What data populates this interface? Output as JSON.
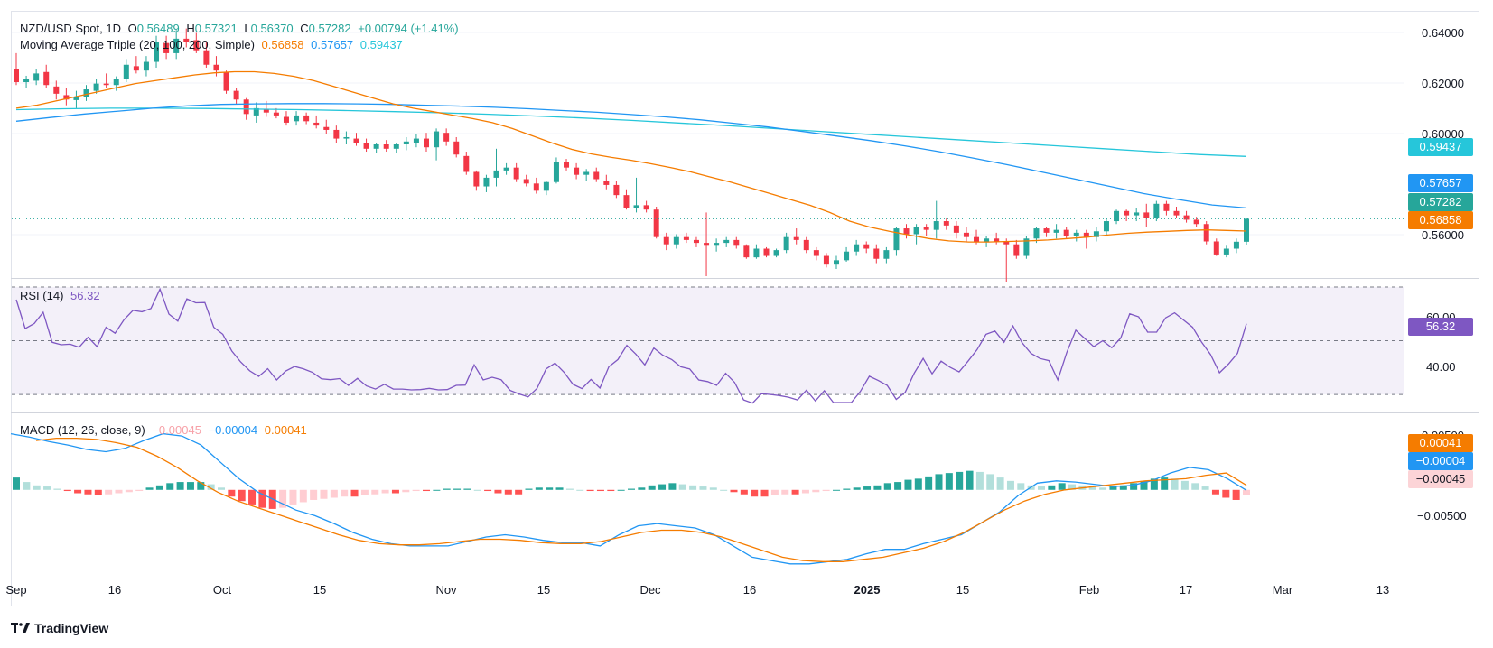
{
  "colors": {
    "up": "#26a69a",
    "down": "#f23645",
    "ma20": "#f57c00",
    "ma100": "#2196f3",
    "ma200": "#26c6da",
    "rsi": "#7e57c2",
    "macd": "#2196f3",
    "signal": "#f57c00"
  },
  "legend": {
    "symbol": "NZD/USD Spot, 1D",
    "o_label": "O",
    "o": "0.56489",
    "h_label": "H",
    "h": "0.57321",
    "l_label": "L",
    "l": "0.56370",
    "c_label": "C",
    "c": "0.57282",
    "change": "+0.00794 (+1.41%)",
    "ma_title": "Moving Average Triple (20, 100, 200, Simple)",
    "ma20": "0.56858",
    "ma100": "0.57657",
    "ma200": "0.59437"
  },
  "rsi_legend": {
    "title": "RSI (14)",
    "value": "56.32"
  },
  "macd_legend": {
    "title": "MACD (12, 26, close, 9)",
    "hist": "−0.00045",
    "macd": "−0.00004",
    "signal": "0.00041"
  },
  "price_axis": [
    "0.64000",
    "0.62000",
    "0.60000",
    "0.56000"
  ],
  "rsi_axis": [
    "60.00",
    "40.00"
  ],
  "macd_axis": [
    "0.00500",
    "−0.00500"
  ],
  "badges": {
    "ma200": "0.59437",
    "ma100": "0.57657",
    "close": "0.57282",
    "ma20": "0.56858",
    "rsi": "56.32",
    "signal": "0.00041",
    "macd": "−0.00004",
    "hist": "−0.00045"
  },
  "time_axis": [
    "Sep",
    "16",
    "Oct",
    "15",
    "Nov",
    "15",
    "Dec",
    "16",
    "2025",
    "15",
    "Feb",
    "17",
    "Mar",
    "13"
  ],
  "brand": "TradingView",
  "chart_data": {
    "type": "candlestick",
    "title": "NZD/USD Spot, 1D",
    "price_range": [
      0.553,
      0.644
    ],
    "rsi_range": [
      25,
      72
    ],
    "macd_range": [
      -0.0075,
      0.0065
    ],
    "candles": [
      [
        0.6245,
        0.63,
        0.619,
        0.62
      ],
      [
        0.62,
        0.6222,
        0.618,
        0.621
      ],
      [
        0.6205,
        0.6245,
        0.619,
        0.623
      ],
      [
        0.6235,
        0.626,
        0.618,
        0.619
      ],
      [
        0.6185,
        0.6205,
        0.614,
        0.616
      ],
      [
        0.6155,
        0.618,
        0.612,
        0.614
      ],
      [
        0.6138,
        0.617,
        0.611,
        0.615
      ],
      [
        0.615,
        0.619,
        0.6135,
        0.6175
      ],
      [
        0.617,
        0.621,
        0.616,
        0.6195
      ],
      [
        0.6195,
        0.623,
        0.618,
        0.619
      ],
      [
        0.619,
        0.622,
        0.617,
        0.621
      ],
      [
        0.621,
        0.628,
        0.62,
        0.626
      ],
      [
        0.6255,
        0.629,
        0.623,
        0.624
      ],
      [
        0.624,
        0.629,
        0.622,
        0.627
      ],
      [
        0.627,
        0.636,
        0.625,
        0.634
      ],
      [
        0.6335,
        0.636,
        0.628,
        0.63
      ],
      [
        0.63,
        0.638,
        0.628,
        0.635
      ],
      [
        0.635,
        0.6385,
        0.632,
        0.634
      ],
      [
        0.6345,
        0.637,
        0.63,
        0.631
      ],
      [
        0.631,
        0.634,
        0.625,
        0.626
      ],
      [
        0.626,
        0.629,
        0.622,
        0.624
      ],
      [
        0.6235,
        0.624,
        0.616,
        0.617
      ],
      [
        0.617,
        0.618,
        0.6125,
        0.614
      ],
      [
        0.614,
        0.6145,
        0.607,
        0.609
      ],
      [
        0.6085,
        0.613,
        0.606,
        0.611
      ],
      [
        0.6105,
        0.6135,
        0.608,
        0.6095
      ],
      [
        0.6095,
        0.611,
        0.6075,
        0.6085
      ],
      [
        0.608,
        0.61,
        0.605,
        0.606
      ],
      [
        0.6065,
        0.61,
        0.605,
        0.6085
      ],
      [
        0.6085,
        0.6095,
        0.6055,
        0.6065
      ],
      [
        0.606,
        0.6085,
        0.604,
        0.605
      ],
      [
        0.6045,
        0.607,
        0.602,
        0.6035
      ],
      [
        0.6035,
        0.605,
        0.599,
        0.6005
      ],
      [
        0.6005,
        0.603,
        0.5985,
        0.601
      ],
      [
        0.6005,
        0.6025,
        0.598,
        0.599
      ],
      [
        0.599,
        0.6005,
        0.596,
        0.597
      ],
      [
        0.597,
        0.599,
        0.5955,
        0.5985
      ],
      [
        0.5985,
        0.6,
        0.596,
        0.597
      ],
      [
        0.597,
        0.599,
        0.5955,
        0.5985
      ],
      [
        0.5985,
        0.601,
        0.5965,
        0.5995
      ],
      [
        0.599,
        0.602,
        0.5975,
        0.6005
      ],
      [
        0.6005,
        0.6025,
        0.596,
        0.5975
      ],
      [
        0.5975,
        0.604,
        0.593,
        0.603
      ],
      [
        0.6025,
        0.604,
        0.598,
        0.5995
      ],
      [
        0.5995,
        0.601,
        0.594,
        0.595
      ],
      [
        0.5945,
        0.596,
        0.588,
        0.589
      ],
      [
        0.589,
        0.5895,
        0.5825,
        0.584
      ],
      [
        0.584,
        0.588,
        0.582,
        0.587
      ],
      [
        0.587,
        0.597,
        0.584,
        0.5895
      ],
      [
        0.5895,
        0.592,
        0.588,
        0.5905
      ],
      [
        0.5905,
        0.592,
        0.5855,
        0.5865
      ],
      [
        0.5865,
        0.588,
        0.584,
        0.585
      ],
      [
        0.585,
        0.587,
        0.5815,
        0.5825
      ],
      [
        0.5825,
        0.586,
        0.581,
        0.5855
      ],
      [
        0.5855,
        0.594,
        0.585,
        0.5925
      ],
      [
        0.5925,
        0.5935,
        0.5895,
        0.5905
      ],
      [
        0.5905,
        0.592,
        0.5865,
        0.588
      ],
      [
        0.588,
        0.59,
        0.586,
        0.589
      ],
      [
        0.589,
        0.5905,
        0.5855,
        0.5865
      ],
      [
        0.586,
        0.588,
        0.583,
        0.5845
      ],
      [
        0.5845,
        0.586,
        0.58,
        0.581
      ],
      [
        0.581,
        0.583,
        0.576,
        0.5765
      ],
      [
        0.5765,
        0.587,
        0.575,
        0.5775
      ],
      [
        0.5775,
        0.579,
        0.575,
        0.576
      ],
      [
        0.576,
        0.577,
        0.566,
        0.5665
      ],
      [
        0.5665,
        0.568,
        0.562,
        0.564
      ],
      [
        0.564,
        0.5675,
        0.5625,
        0.5665
      ],
      [
        0.5665,
        0.568,
        0.5645,
        0.5655
      ],
      [
        0.5655,
        0.5665,
        0.563,
        0.5645
      ],
      [
        0.5645,
        0.575,
        0.553,
        0.5635
      ],
      [
        0.5635,
        0.566,
        0.5615,
        0.5645
      ],
      [
        0.5645,
        0.5665,
        0.563,
        0.5655
      ],
      [
        0.5655,
        0.5665,
        0.5625,
        0.5635
      ],
      [
        0.5635,
        0.564,
        0.559,
        0.5595
      ],
      [
        0.5595,
        0.564,
        0.559,
        0.5625
      ],
      [
        0.5625,
        0.563,
        0.5595,
        0.56
      ],
      [
        0.56,
        0.5625,
        0.5595,
        0.562
      ],
      [
        0.562,
        0.568,
        0.561,
        0.5665
      ],
      [
        0.5665,
        0.5695,
        0.564,
        0.5655
      ],
      [
        0.5655,
        0.5665,
        0.561,
        0.562
      ],
      [
        0.562,
        0.563,
        0.5585,
        0.56
      ],
      [
        0.56,
        0.561,
        0.556,
        0.557
      ],
      [
        0.557,
        0.56,
        0.5555,
        0.5585
      ],
      [
        0.5585,
        0.563,
        0.558,
        0.5615
      ],
      [
        0.5615,
        0.5655,
        0.56,
        0.564
      ],
      [
        0.564,
        0.565,
        0.561,
        0.5625
      ],
      [
        0.5625,
        0.564,
        0.5575,
        0.559
      ],
      [
        0.559,
        0.563,
        0.5575,
        0.562
      ],
      [
        0.562,
        0.57,
        0.56,
        0.5695
      ],
      [
        0.5695,
        0.571,
        0.566,
        0.5675
      ],
      [
        0.5675,
        0.571,
        0.564,
        0.57
      ],
      [
        0.57,
        0.571,
        0.567,
        0.569
      ],
      [
        0.569,
        0.579,
        0.566,
        0.572
      ],
      [
        0.572,
        0.573,
        0.569,
        0.5705
      ],
      [
        0.5705,
        0.572,
        0.566,
        0.568
      ],
      [
        0.568,
        0.57,
        0.565,
        0.5665
      ],
      [
        0.5665,
        0.569,
        0.564,
        0.565
      ],
      [
        0.565,
        0.567,
        0.563,
        0.566
      ],
      [
        0.566,
        0.568,
        0.564,
        0.565
      ],
      [
        0.565,
        0.566,
        0.551,
        0.564
      ],
      [
        0.564,
        0.5655,
        0.559,
        0.56
      ],
      [
        0.56,
        0.567,
        0.559,
        0.566
      ],
      [
        0.566,
        0.57,
        0.5645,
        0.5695
      ],
      [
        0.5695,
        0.57,
        0.5665,
        0.568
      ],
      [
        0.568,
        0.571,
        0.566,
        0.569
      ],
      [
        0.569,
        0.57,
        0.566,
        0.567
      ],
      [
        0.567,
        0.569,
        0.565,
        0.568
      ],
      [
        0.568,
        0.569,
        0.5625,
        0.5665
      ],
      [
        0.5665,
        0.57,
        0.565,
        0.5685
      ],
      [
        0.5685,
        0.573,
        0.567,
        0.572
      ],
      [
        0.572,
        0.576,
        0.571,
        0.5755
      ],
      [
        0.5755,
        0.576,
        0.572,
        0.574
      ],
      [
        0.574,
        0.5765,
        0.572,
        0.575
      ],
      [
        0.575,
        0.578,
        0.57,
        0.573
      ],
      [
        0.573,
        0.579,
        0.572,
        0.578
      ],
      [
        0.578,
        0.579,
        0.574,
        0.5755
      ],
      [
        0.5755,
        0.577,
        0.573,
        0.574
      ],
      [
        0.574,
        0.5755,
        0.5715,
        0.5725
      ],
      [
        0.5725,
        0.5735,
        0.57,
        0.571
      ],
      [
        0.571,
        0.572,
        0.564,
        0.565
      ],
      [
        0.565,
        0.566,
        0.56,
        0.5605
      ],
      [
        0.5605,
        0.5635,
        0.5595,
        0.5625
      ],
      [
        0.5625,
        0.566,
        0.561,
        0.5649
      ],
      [
        0.56489,
        0.57321,
        0.5637,
        0.57282
      ]
    ],
    "ma20": [
      0.611,
      0.612,
      0.6135,
      0.615,
      0.6165,
      0.618,
      0.6195,
      0.6205,
      0.6215,
      0.6225,
      0.6232,
      0.6236,
      0.6236,
      0.623,
      0.622,
      0.6205,
      0.6185,
      0.6165,
      0.6145,
      0.6125,
      0.611,
      0.6098,
      0.6086,
      0.6074,
      0.606,
      0.604,
      0.6015,
      0.599,
      0.5968,
      0.5952,
      0.594,
      0.593,
      0.5918,
      0.5905,
      0.589,
      0.5872,
      0.5855,
      0.5835,
      0.5815,
      0.5795,
      0.5775,
      0.575,
      0.572,
      0.57,
      0.5685,
      0.5672,
      0.566,
      0.5652,
      0.5648,
      0.5648,
      0.565,
      0.5652,
      0.5655,
      0.566,
      0.5665,
      0.5672,
      0.5678,
      0.5682,
      0.5685,
      0.5688,
      0.569,
      0.5688,
      0.56858
    ],
    "ma100": [
      0.6065,
      0.6078,
      0.609,
      0.61,
      0.611,
      0.6118,
      0.6123,
      0.6125,
      0.6126,
      0.6126,
      0.6125,
      0.6123,
      0.612,
      0.6117,
      0.6113,
      0.6108,
      0.6102,
      0.6096,
      0.6088,
      0.608,
      0.607,
      0.6058,
      0.6045,
      0.603,
      0.6014,
      0.5998,
      0.598,
      0.596,
      0.5938,
      0.5915,
      0.589,
      0.5865,
      0.584,
      0.5815,
      0.5795,
      0.5776,
      0.57657
    ],
    "ma200": [
      0.6105,
      0.6108,
      0.611,
      0.611,
      0.6109,
      0.6107,
      0.6105,
      0.6102,
      0.6098,
      0.6094,
      0.6089,
      0.6083,
      0.6076,
      0.6068,
      0.6059,
      0.605,
      0.604,
      0.603,
      0.602,
      0.601,
      0.6,
      0.599,
      0.598,
      0.597,
      0.596,
      0.595,
      0.59437
    ],
    "rsi": [
      65.3,
      54.5,
      56.4,
      60.6,
      49.4,
      48.5,
      48.7,
      47.6,
      51.3,
      47.8,
      55.0,
      52.8,
      57.8,
      61.3,
      60.8,
      62.0,
      69.2,
      59.9,
      57.3,
      65.6,
      64.1,
      64.2,
      55.0,
      52.4,
      46.2,
      42.1,
      38.8,
      36.7,
      39.6,
      35.4,
      38.7,
      40.4,
      39.5,
      38.2,
      35.8,
      35.5,
      35.9,
      33.4,
      36.0,
      33.2,
      32.0,
      33.8,
      32.0,
      32.0,
      31.7,
      31.8,
      32.3,
      31.7,
      31.8,
      33.4,
      33.5,
      41.0,
      35.4,
      36.4,
      35.5,
      31.5,
      30.2,
      29.1,
      32.3,
      39.5,
      41.7,
      38.3,
      33.8,
      32.2,
      35.6,
      32.4,
      40.3,
      43.0,
      48.3,
      45.0,
      41.0,
      47.3,
      44.6,
      43.0,
      40.3,
      39.5,
      35.4,
      34.8,
      33.4,
      37.9,
      34.5,
      28.0,
      26.8,
      30.3,
      30.0,
      29.6,
      29.0,
      28.0,
      31.6,
      27.6,
      31.4,
      27.0,
      27.0,
      27.0,
      31.1,
      36.8,
      35.2,
      33.4,
      28.2,
      30.8,
      37.9,
      43.4,
      37.7,
      42.4,
      40.1,
      38.4,
      42.4,
      46.7,
      52.4,
      53.6,
      49.4,
      55.5,
      49.3,
      45.3,
      43.4,
      42.6,
      35.4,
      45.7,
      53.9,
      50.8,
      47.8,
      50.0,
      47.4,
      51.0,
      60.0,
      58.9,
      53.2,
      53.2,
      58.5,
      60.4,
      57.7,
      55.0,
      49.5,
      44.9,
      38.1,
      41.3,
      45.3,
      56.32
    ],
    "macd": [
      0.005,
      0.0047,
      0.0043,
      0.004,
      0.0036,
      0.0034,
      0.0037,
      0.0044,
      0.005,
      0.0048,
      0.004,
      0.0025,
      0.001,
      -0.0002,
      -0.001,
      -0.0018,
      -0.0023,
      -0.003,
      -0.0038,
      -0.0044,
      -0.0048,
      -0.005,
      -0.005,
      -0.005,
      -0.0046,
      -0.0042,
      -0.004,
      -0.0042,
      -0.0045,
      -0.0047,
      -0.0047,
      -0.005,
      -0.004,
      -0.0032,
      -0.003,
      -0.0032,
      -0.0034,
      -0.004,
      -0.005,
      -0.006,
      -0.0063,
      -0.0066,
      -0.0066,
      -0.0064,
      -0.0062,
      -0.0057,
      -0.0053,
      -0.0053,
      -0.0048,
      -0.0044,
      -0.004,
      -0.003,
      -0.002,
      -0.0005,
      0.0006,
      0.0008,
      0.0007,
      0.0005,
      0.0003,
      0.0004,
      0.0008,
      0.0015,
      0.002,
      0.0018,
      0.001,
      -4e-05
    ],
    "signal": [
      0.0044,
      0.0046,
      0.0046,
      0.0045,
      0.0042,
      0.0038,
      0.003,
      0.002,
      0.0008,
      -0.0002,
      -0.001,
      -0.0016,
      -0.0022,
      -0.0028,
      -0.0034,
      -0.004,
      -0.0045,
      -0.0048,
      -0.0049,
      -0.0049,
      -0.0048,
      -0.0046,
      -0.0044,
      -0.0044,
      -0.0045,
      -0.0047,
      -0.0048,
      -0.0048,
      -0.0046,
      -0.0042,
      -0.0038,
      -0.0036,
      -0.0036,
      -0.0038,
      -0.0042,
      -0.0048,
      -0.0054,
      -0.006,
      -0.0063,
      -0.0064,
      -0.0064,
      -0.0062,
      -0.006,
      -0.0056,
      -0.0052,
      -0.0046,
      -0.0038,
      -0.0028,
      -0.0018,
      -0.001,
      -0.0004,
      0.0,
      0.0002,
      0.0004,
      0.0006,
      0.0008,
      0.0009,
      0.001,
      0.0013,
      0.0015,
      0.00041
    ],
    "hist": [
      0.0011,
      0.0007,
      0.0004,
      0.0003,
      0.0001,
      -0.0001,
      -0.0003,
      -0.0004,
      -0.0005,
      -0.0004,
      -0.0003,
      -0.0002,
      -0.0001,
      0.0002,
      0.0004,
      0.0006,
      0.0007,
      0.0007,
      0.0007,
      0.0005,
      0.0002,
      -0.0006,
      -0.001,
      -0.0013,
      -0.0016,
      -0.0017,
      -0.0016,
      -0.0013,
      -0.0011,
      -0.0009,
      -0.0008,
      -0.0007,
      -0.0006,
      -0.0006,
      -0.0005,
      -0.0004,
      -0.0003,
      -0.0003,
      -0.0002,
      -0.0001,
      -0.0001,
      0.0,
      0.0001,
      0.0001,
      0.0001,
      0.0,
      -0.0001,
      -0.0003,
      -0.0004,
      -0.0004,
      0.0001,
      0.0002,
      0.0002,
      0.0002,
      0.0001,
      0.0,
      -0.0001,
      -0.0001,
      -0.0001,
      0.0,
      0.0001,
      0.0002,
      0.0004,
      0.0005,
      0.0006,
      0.0005,
      0.0004,
      0.0003,
      0.0002,
      0.0,
      -0.0002,
      -0.0004,
      -0.0006,
      -0.0006,
      -0.0005,
      -0.0004,
      -0.0004,
      -0.0003,
      -0.0002,
      -0.0001,
      0.0,
      0.0001,
      0.0002,
      0.0003,
      0.0004,
      0.0006,
      0.0007,
      0.0009,
      0.001,
      0.0012,
      0.0014,
      0.0015,
      0.0016,
      0.0017,
      0.0016,
      0.0014,
      0.0011,
      0.0008,
      0.0006,
      0.0004,
      0.0003,
      0.0004,
      0.0006,
      0.0005,
      0.0004,
      0.0003,
      0.0002,
      0.0003,
      0.0004,
      0.0006,
      0.0008,
      0.001,
      0.0011,
      0.001,
      0.0008,
      0.0006,
      0.0003,
      -0.0004,
      -0.0007,
      -0.0009,
      -0.00045
    ]
  }
}
